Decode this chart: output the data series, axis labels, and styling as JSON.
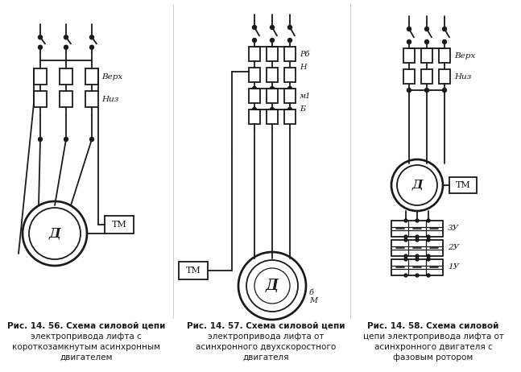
{
  "bg_color": "#ffffff",
  "line_color": "#1a1a1a",
  "fig1": {
    "caption_line1": "Рис. 14. 56. Схема силовой цепи",
    "caption_line2": "электропривода лифта с",
    "caption_line3": "короткозамкнутым асинхронным",
    "caption_line4": "двигателем",
    "label_verh": "Верх",
    "label_niz": "Низ",
    "label_D": "Д",
    "label_TM": "ТМ"
  },
  "fig2": {
    "caption_line1": "Рис. 14. 57. Схема силовой цепи",
    "caption_line2": "электропривода лифта от",
    "caption_line3": "асинхронного двухскоростного",
    "caption_line4": "двигателя",
    "label_D": "Д",
    "label_TM": "ТМ",
    "label_Rb": "Рб",
    "label_H": "Н",
    "label_M1": "м1",
    "label_B": "Б",
    "label_b": "б",
    "label_M": "М"
  },
  "fig3": {
    "caption_line1": "Рис. 14. 58. Схема силовой",
    "caption_line2": "цепи электропривода лифта от",
    "caption_line3": "асинхронного двигателя с",
    "caption_line4": "фазовым ротором",
    "label_D": "Д",
    "label_TM": "ТМ",
    "label_verh": "Верх",
    "label_niz": "Низ",
    "label_1u": "1У",
    "label_2u": "2У",
    "label_3u": "3У"
  }
}
